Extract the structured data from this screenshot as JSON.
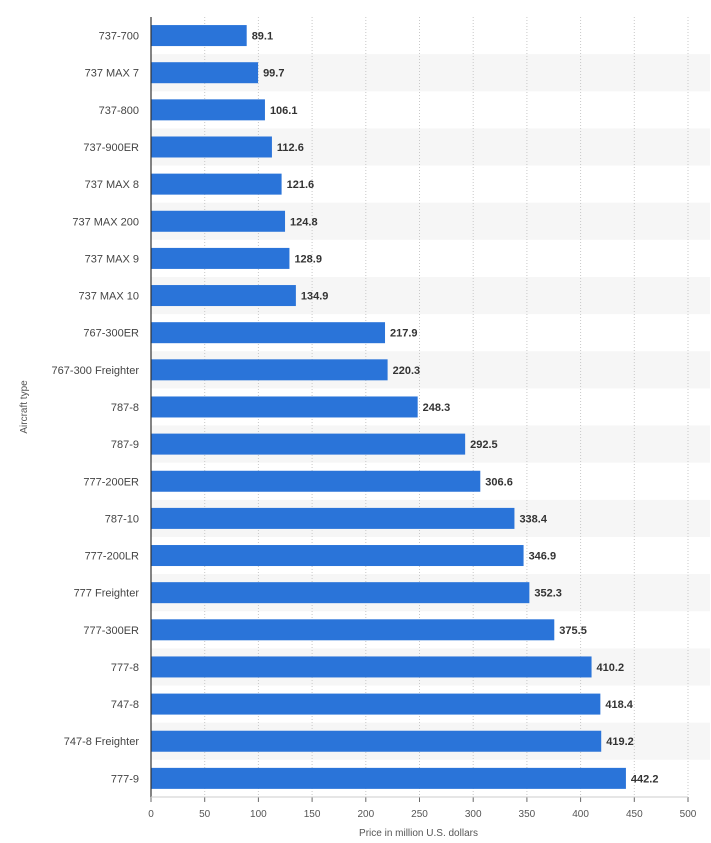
{
  "chart_data": {
    "type": "bar",
    "orientation": "horizontal",
    "categories": [
      "737-700",
      "737 MAX 7",
      "737-800",
      "737-900ER",
      "737 MAX 8",
      "737 MAX 200",
      "737 MAX 9",
      "737 MAX 10",
      "767-300ER",
      "767-300 Freighter",
      "787-8",
      "787-9",
      "777-200ER",
      "787-10",
      "777-200LR",
      "777 Freighter",
      "777-300ER",
      "777-8",
      "747-8",
      "747-8 Freighter",
      "777-9"
    ],
    "values": [
      89.1,
      99.7,
      106.1,
      112.6,
      121.6,
      124.8,
      128.9,
      134.9,
      217.9,
      220.3,
      248.3,
      292.5,
      306.6,
      338.4,
      346.9,
      352.3,
      375.5,
      410.2,
      418.4,
      419.2,
      442.2
    ],
    "value_labels": [
      "89.1",
      "99.7",
      "106.1",
      "112.6",
      "121.6",
      "124.8",
      "128.9",
      "134.9",
      "217.9",
      "220.3",
      "248.3",
      "292.5",
      "306.6",
      "338.4",
      "346.9",
      "352.3",
      "375.5",
      "410.2",
      "418.4",
      "419.2",
      "442.2"
    ],
    "xlabel": "Price in million U.S. dollars",
    "ylabel": "Aircraft type",
    "xlim": [
      0,
      500
    ],
    "xticks": [
      0,
      50,
      100,
      150,
      200,
      250,
      300,
      350,
      400,
      450,
      500
    ],
    "grid": true,
    "bar_color": "#2a74d9",
    "stripe_color": "#f6f6f6"
  }
}
